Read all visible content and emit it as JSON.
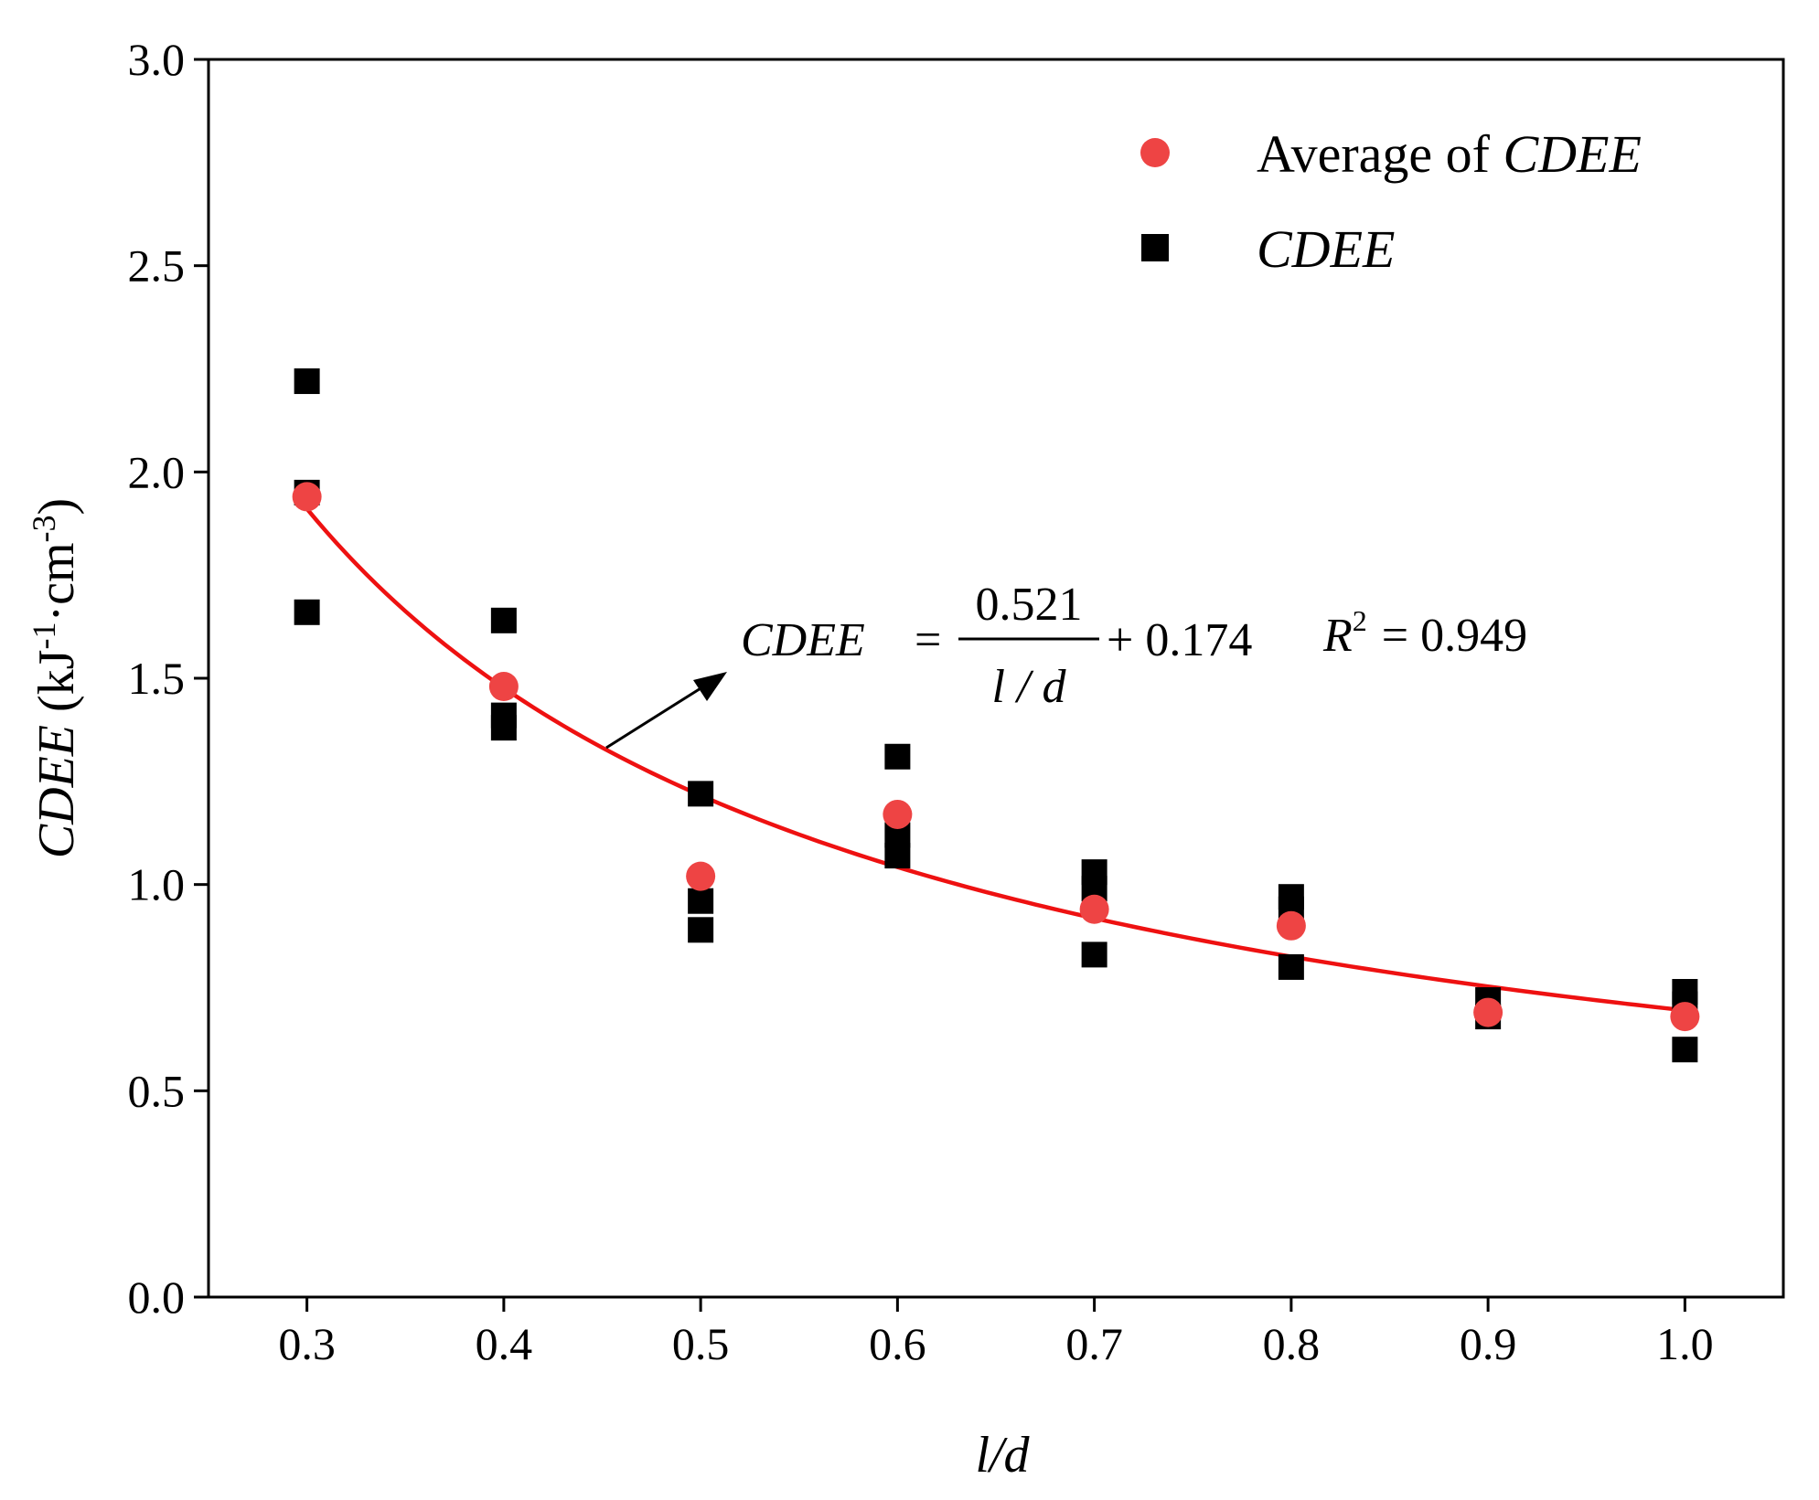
{
  "chart_data": {
    "type": "scatter",
    "title": "",
    "xlabel": "l/d",
    "ylabel": {
      "main": "CDEE",
      "unit_open": " (kJ",
      "exp1": "-1",
      "mid": "·cm",
      "exp2": "-3",
      "unit_close": ")"
    },
    "xlim": [
      0.25,
      1.05
    ],
    "ylim": [
      0.0,
      3.0
    ],
    "x_ticks": [
      "0.3",
      "0.4",
      "0.5",
      "0.6",
      "0.7",
      "0.8",
      "0.9",
      "1.0"
    ],
    "y_ticks": [
      "0.0",
      "0.5",
      "1.0",
      "1.5",
      "2.0",
      "2.5",
      "3.0"
    ],
    "legend_position": "top-right",
    "series": [
      {
        "name": "CDEE",
        "marker": "square",
        "color": "#000000",
        "points": [
          [
            0.3,
            2.22
          ],
          [
            0.3,
            1.95
          ],
          [
            0.3,
            1.66
          ],
          [
            0.4,
            1.64
          ],
          [
            0.4,
            1.41
          ],
          [
            0.4,
            1.38
          ],
          [
            0.5,
            1.22
          ],
          [
            0.5,
            0.96
          ],
          [
            0.5,
            0.89
          ],
          [
            0.6,
            1.31
          ],
          [
            0.6,
            1.12
          ],
          [
            0.6,
            1.07
          ],
          [
            0.7,
            1.03
          ],
          [
            0.7,
            0.99
          ],
          [
            0.7,
            0.83
          ],
          [
            0.8,
            0.97
          ],
          [
            0.8,
            0.94
          ],
          [
            0.8,
            0.8
          ],
          [
            0.9,
            0.72
          ],
          [
            0.9,
            0.68
          ],
          [
            1.0,
            0.74
          ],
          [
            1.0,
            0.71
          ],
          [
            1.0,
            0.6
          ]
        ]
      },
      {
        "name": "Average of CDEE",
        "marker": "circle",
        "color": "#ee4444",
        "points": [
          [
            0.3,
            1.94
          ],
          [
            0.4,
            1.48
          ],
          [
            0.5,
            1.02
          ],
          [
            0.6,
            1.17
          ],
          [
            0.7,
            0.94
          ],
          [
            0.8,
            0.9
          ],
          [
            0.9,
            0.69
          ],
          [
            1.0,
            0.68
          ]
        ]
      }
    ],
    "fit": {
      "color": "#ee1111",
      "a": 0.521,
      "b": 0.174,
      "x_range": [
        0.3,
        1.0
      ]
    },
    "legend": {
      "average": {
        "prefix": "Average of ",
        "italic": "CDEE"
      },
      "cdee": {
        "italic": "CDEE"
      }
    },
    "annotation": {
      "lhs": "CDEE",
      "equals": "=",
      "numerator": "0.521",
      "denominator": "l / d",
      "plus": "+ 0.174",
      "r_symbol": "R",
      "r_exp": "2",
      "r_value": "= 0.949"
    }
  }
}
